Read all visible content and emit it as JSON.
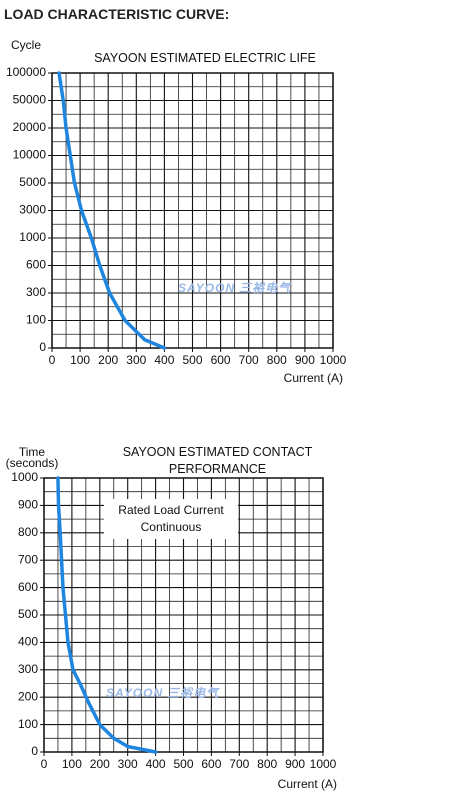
{
  "heading": "LOAD CHARACTERISTIC CURVE:",
  "chart_data": [
    {
      "type": "line",
      "title": "SAYOON ESTIMATED ELECTRIC LIFE",
      "y_label": "Cycle",
      "x_label": "Current (A)",
      "watermark": [
        "SAYOON",
        "三裕电气"
      ],
      "y_scale": "tick-spaced",
      "x": [
        25,
        40,
        50,
        65,
        80,
        105,
        140,
        170,
        205,
        260,
        330,
        400
      ],
      "series": [
        {
          "name": "Electric life",
          "color": "#1f86e0",
          "values": [
            100000,
            50000,
            20000,
            10000,
            5000,
            3000,
            1000,
            600,
            300,
            100,
            30,
            0
          ]
        }
      ],
      "xlim": [
        0,
        1000
      ],
      "xticks": [
        0,
        100,
        200,
        300,
        400,
        500,
        600,
        700,
        800,
        900,
        1000
      ],
      "ylim": [
        0,
        100000
      ],
      "yticks": [
        0,
        100,
        300,
        600,
        1000,
        3000,
        5000,
        10000,
        20000,
        50000,
        100000
      ],
      "grid": true,
      "minor_grid": true
    },
    {
      "type": "line",
      "title": "SAYOON ESTIMATED CONTACT PERFORMANCE",
      "y_label": "Time (seconds)",
      "x_label": "Current (A)",
      "annotation": "Rated Load Current Continuous",
      "watermark": [
        "SAYOON",
        "三裕电气"
      ],
      "y_scale": "linear",
      "x": [
        50,
        52,
        58,
        68,
        86,
        104,
        129,
        160,
        200,
        250,
        300,
        400
      ],
      "series": [
        {
          "name": "Contact performance",
          "color": "#1f86e0",
          "values": [
            1000,
            900,
            800,
            600,
            400,
            300,
            250,
            180,
            100,
            50,
            20,
            0
          ]
        }
      ],
      "xlim": [
        0,
        1000
      ],
      "xticks": [
        0,
        100,
        200,
        300,
        400,
        500,
        600,
        700,
        800,
        900,
        1000
      ],
      "ylim": [
        0,
        1000
      ],
      "yticks": [
        0,
        100,
        200,
        300,
        400,
        500,
        600,
        700,
        800,
        900,
        1000
      ],
      "grid": true,
      "minor_grid": true
    }
  ]
}
